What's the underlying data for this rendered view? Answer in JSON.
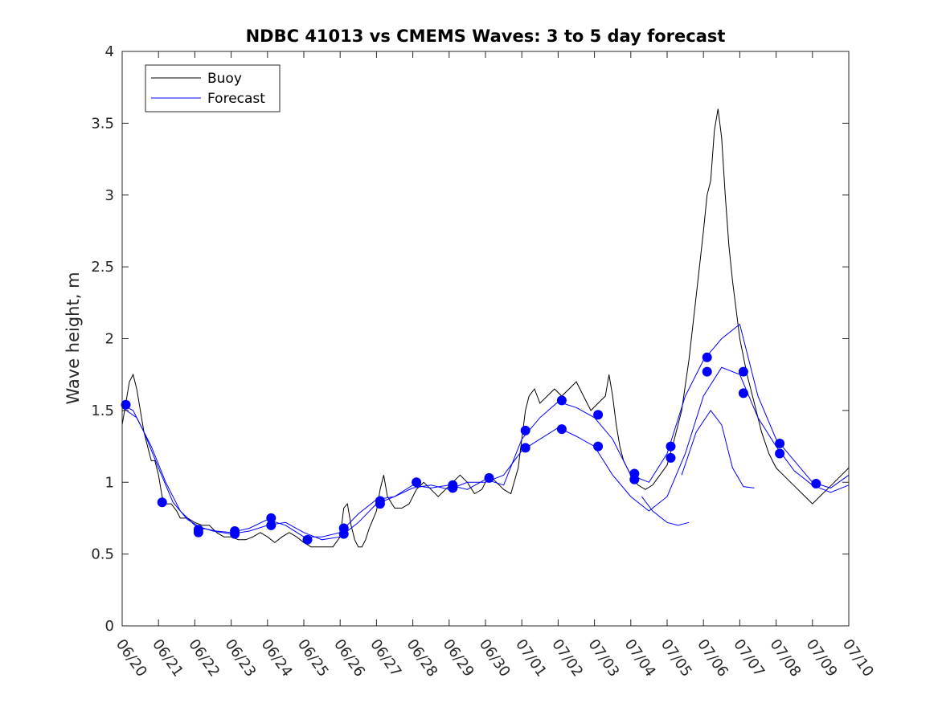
{
  "chart_data": {
    "type": "line",
    "title": "NDBC 41013 vs CMEMS Waves: 3 to 5 day forecast",
    "xlabel": "",
    "ylabel": "Wave height, m",
    "xlim": [
      0,
      20
    ],
    "ylim": [
      0,
      4
    ],
    "x_tick_labels": [
      "06/20",
      "06/21",
      "06/22",
      "06/23",
      "06/24",
      "06/25",
      "06/26",
      "06/27",
      "06/28",
      "06/29",
      "06/30",
      "07/01",
      "07/02",
      "07/03",
      "07/04",
      "07/05",
      "07/06",
      "07/07",
      "07/08",
      "07/09",
      "07/10"
    ],
    "y_ticks": [
      "0",
      "0.5",
      "1",
      "1.5",
      "2",
      "2.5",
      "3",
      "3.5",
      "4"
    ],
    "grid": false,
    "legend": {
      "position": "top-left",
      "entries": [
        "Buoy",
        "Forecast"
      ]
    },
    "colors": {
      "buoy": "#000000",
      "forecast": "#0000ff",
      "marker": "#0000ff",
      "axis": "#262626"
    },
    "series": [
      {
        "name": "Buoy",
        "color": "#000000",
        "points": [
          [
            0,
            1.4
          ],
          [
            0.1,
            1.55
          ],
          [
            0.2,
            1.7
          ],
          [
            0.3,
            1.75
          ],
          [
            0.4,
            1.65
          ],
          [
            0.5,
            1.5
          ],
          [
            0.6,
            1.35
          ],
          [
            0.7,
            1.25
          ],
          [
            0.8,
            1.15
          ],
          [
            0.9,
            1.15
          ],
          [
            1,
            1.05
          ],
          [
            1.1,
            0.9
          ],
          [
            1.2,
            0.85
          ],
          [
            1.35,
            0.85
          ],
          [
            1.5,
            0.8
          ],
          [
            1.6,
            0.75
          ],
          [
            1.7,
            0.75
          ],
          [
            1.8,
            0.75
          ],
          [
            2,
            0.72
          ],
          [
            2.2,
            0.7
          ],
          [
            2.4,
            0.7
          ],
          [
            2.6,
            0.65
          ],
          [
            2.8,
            0.62
          ],
          [
            3,
            0.62
          ],
          [
            3.2,
            0.6
          ],
          [
            3.4,
            0.6
          ],
          [
            3.6,
            0.62
          ],
          [
            3.8,
            0.65
          ],
          [
            4,
            0.62
          ],
          [
            4.2,
            0.58
          ],
          [
            4.4,
            0.62
          ],
          [
            4.6,
            0.65
          ],
          [
            4.8,
            0.62
          ],
          [
            5,
            0.58
          ],
          [
            5.2,
            0.55
          ],
          [
            5.4,
            0.55
          ],
          [
            5.6,
            0.55
          ],
          [
            5.8,
            0.55
          ],
          [
            6,
            0.62
          ],
          [
            6.1,
            0.82
          ],
          [
            6.2,
            0.85
          ],
          [
            6.3,
            0.7
          ],
          [
            6.4,
            0.6
          ],
          [
            6.5,
            0.55
          ],
          [
            6.6,
            0.55
          ],
          [
            6.7,
            0.6
          ],
          [
            6.8,
            0.68
          ],
          [
            7,
            0.8
          ],
          [
            7.1,
            0.95
          ],
          [
            7.2,
            1.05
          ],
          [
            7.3,
            0.9
          ],
          [
            7.5,
            0.82
          ],
          [
            7.7,
            0.82
          ],
          [
            7.9,
            0.85
          ],
          [
            8.1,
            0.95
          ],
          [
            8.3,
            1.0
          ],
          [
            8.5,
            0.95
          ],
          [
            8.7,
            0.9
          ],
          [
            8.9,
            0.95
          ],
          [
            9.1,
            1.0
          ],
          [
            9.3,
            1.05
          ],
          [
            9.5,
            1.0
          ],
          [
            9.7,
            0.92
          ],
          [
            9.9,
            0.95
          ],
          [
            10.1,
            1.05
          ],
          [
            10.3,
            1.0
          ],
          [
            10.5,
            0.95
          ],
          [
            10.7,
            0.92
          ],
          [
            10.9,
            1.1
          ],
          [
            11,
            1.3
          ],
          [
            11.1,
            1.5
          ],
          [
            11.2,
            1.6
          ],
          [
            11.35,
            1.65
          ],
          [
            11.5,
            1.55
          ],
          [
            11.7,
            1.6
          ],
          [
            11.9,
            1.65
          ],
          [
            12.1,
            1.6
          ],
          [
            12.3,
            1.65
          ],
          [
            12.5,
            1.7
          ],
          [
            12.7,
            1.6
          ],
          [
            12.9,
            1.5
          ],
          [
            13.1,
            1.55
          ],
          [
            13.3,
            1.6
          ],
          [
            13.4,
            1.75
          ],
          [
            13.5,
            1.6
          ],
          [
            13.6,
            1.4
          ],
          [
            13.7,
            1.25
          ],
          [
            13.8,
            1.15
          ],
          [
            14,
            1.05
          ],
          [
            14.2,
            0.98
          ],
          [
            14.4,
            0.95
          ],
          [
            14.6,
            0.98
          ],
          [
            14.8,
            1.05
          ],
          [
            15,
            1.12
          ],
          [
            15.2,
            1.3
          ],
          [
            15.4,
            1.5
          ],
          [
            15.6,
            1.85
          ],
          [
            15.8,
            2.3
          ],
          [
            16,
            2.75
          ],
          [
            16.1,
            3.0
          ],
          [
            16.2,
            3.1
          ],
          [
            16.3,
            3.45
          ],
          [
            16.4,
            3.6
          ],
          [
            16.5,
            3.4
          ],
          [
            16.6,
            3.0
          ],
          [
            16.7,
            2.65
          ],
          [
            16.8,
            2.4
          ],
          [
            17,
            2.0
          ],
          [
            17.2,
            1.75
          ],
          [
            17.4,
            1.55
          ],
          [
            17.6,
            1.35
          ],
          [
            17.8,
            1.2
          ],
          [
            18,
            1.1
          ],
          [
            18.2,
            1.05
          ],
          [
            18.4,
            1.0
          ],
          [
            18.6,
            0.95
          ],
          [
            18.8,
            0.9
          ],
          [
            19,
            0.85
          ],
          [
            19.2,
            0.9
          ],
          [
            19.4,
            0.95
          ],
          [
            19.6,
            1.0
          ],
          [
            19.8,
            1.05
          ],
          [
            20,
            1.1
          ]
        ]
      },
      {
        "name": "Forecast",
        "color": "#0000ff",
        "points": [
          [
            0,
            1.54
          ],
          [
            0.3,
            1.5
          ],
          [
            0.6,
            1.35
          ],
          [
            1,
            1.1
          ],
          [
            1.4,
            0.86
          ],
          [
            1.8,
            0.74
          ],
          [
            2.2,
            0.68
          ],
          [
            2.6,
            0.66
          ],
          [
            3,
            0.65
          ],
          [
            3.5,
            0.68
          ],
          [
            4,
            0.74
          ],
          [
            4.5,
            0.7
          ],
          [
            5,
            0.62
          ],
          [
            5.5,
            0.62
          ],
          [
            6,
            0.65
          ],
          [
            6.5,
            0.78
          ],
          [
            7,
            0.88
          ],
          [
            7.5,
            0.9
          ],
          [
            8,
            0.98
          ],
          [
            8.5,
            0.96
          ],
          [
            9,
            0.98
          ],
          [
            9.5,
            0.95
          ],
          [
            10,
            1.02
          ],
          [
            10.5,
            0.98
          ],
          [
            11,
            1.3
          ],
          [
            11.5,
            1.45
          ],
          [
            12,
            1.56
          ],
          [
            12.5,
            1.52
          ],
          [
            13,
            1.45
          ],
          [
            13.5,
            1.3
          ],
          [
            14,
            1.05
          ],
          [
            14.5,
            1.0
          ],
          [
            15,
            1.2
          ],
          [
            15.5,
            1.6
          ],
          [
            16,
            1.85
          ],
          [
            16.5,
            2.0
          ],
          [
            17,
            2.1
          ],
          [
            17.5,
            1.6
          ],
          [
            18,
            1.3
          ],
          [
            18.5,
            1.15
          ],
          [
            19,
            1.0
          ],
          [
            19.5,
            0.96
          ],
          [
            20,
            1.05
          ]
        ]
      },
      {
        "name": "",
        "color": "#0000ff",
        "points": [
          [
            0,
            1.52
          ],
          [
            0.4,
            1.45
          ],
          [
            0.8,
            1.25
          ],
          [
            1.2,
            1.0
          ],
          [
            1.6,
            0.8
          ],
          [
            2,
            0.7
          ],
          [
            2.5,
            0.66
          ],
          [
            3,
            0.64
          ],
          [
            3.5,
            0.66
          ],
          [
            4,
            0.7
          ],
          [
            4.5,
            0.72
          ],
          [
            5,
            0.65
          ],
          [
            5.5,
            0.6
          ],
          [
            6,
            0.62
          ],
          [
            6.5,
            0.72
          ],
          [
            7,
            0.85
          ],
          [
            7.5,
            0.9
          ],
          [
            8,
            0.96
          ],
          [
            8.5,
            0.98
          ],
          [
            9,
            0.95
          ],
          [
            9.5,
            1.0
          ],
          [
            10,
            1.0
          ],
          [
            10.5,
            1.05
          ],
          [
            11,
            1.22
          ],
          [
            11.5,
            1.3
          ],
          [
            12,
            1.38
          ],
          [
            12.5,
            1.32
          ],
          [
            13,
            1.25
          ],
          [
            13.5,
            1.05
          ],
          [
            14,
            0.9
          ],
          [
            14.5,
            0.8
          ],
          [
            15,
            0.9
          ],
          [
            15.5,
            1.2
          ],
          [
            16,
            1.6
          ],
          [
            16.5,
            1.8
          ],
          [
            17,
            1.75
          ],
          [
            17.5,
            1.45
          ],
          [
            18,
            1.25
          ],
          [
            18.5,
            1.08
          ],
          [
            19,
            0.98
          ],
          [
            19.5,
            0.93
          ],
          [
            20,
            0.98
          ]
        ]
      },
      {
        "name": "",
        "color": "#0000ff",
        "points": [
          [
            14.3,
            0.9
          ],
          [
            14.6,
            0.8
          ],
          [
            15,
            0.72
          ],
          [
            15.3,
            0.7
          ],
          [
            15.6,
            0.72
          ]
        ]
      },
      {
        "name": "",
        "color": "#0000ff",
        "points": [
          [
            15.4,
            1.05
          ],
          [
            15.8,
            1.35
          ],
          [
            16.2,
            1.5
          ],
          [
            16.5,
            1.4
          ],
          [
            16.8,
            1.1
          ],
          [
            17.1,
            0.97
          ],
          [
            17.4,
            0.96
          ]
        ]
      }
    ],
    "markers": [
      [
        0.1,
        1.54
      ],
      [
        1.1,
        0.86
      ],
      [
        2.1,
        0.67
      ],
      [
        2.1,
        0.65
      ],
      [
        3.1,
        0.66
      ],
      [
        3.1,
        0.64
      ],
      [
        4.1,
        0.75
      ],
      [
        4.1,
        0.7
      ],
      [
        5.1,
        0.6
      ],
      [
        6.1,
        0.68
      ],
      [
        6.1,
        0.64
      ],
      [
        7.1,
        0.87
      ],
      [
        7.1,
        0.85
      ],
      [
        8.1,
        1.0
      ],
      [
        9.1,
        0.98
      ],
      [
        9.1,
        0.96
      ],
      [
        10.1,
        1.03
      ],
      [
        11.1,
        1.36
      ],
      [
        11.1,
        1.24
      ],
      [
        12.1,
        1.57
      ],
      [
        12.1,
        1.37
      ],
      [
        13.1,
        1.47
      ],
      [
        13.1,
        1.25
      ],
      [
        14.1,
        1.06
      ],
      [
        14.1,
        1.02
      ],
      [
        15.1,
        1.25
      ],
      [
        15.1,
        1.17
      ],
      [
        16.1,
        1.87
      ],
      [
        16.1,
        1.77
      ],
      [
        17.1,
        1.77
      ],
      [
        17.1,
        1.62
      ],
      [
        18.1,
        1.27
      ],
      [
        18.1,
        1.2
      ],
      [
        19.1,
        0.99
      ]
    ]
  }
}
